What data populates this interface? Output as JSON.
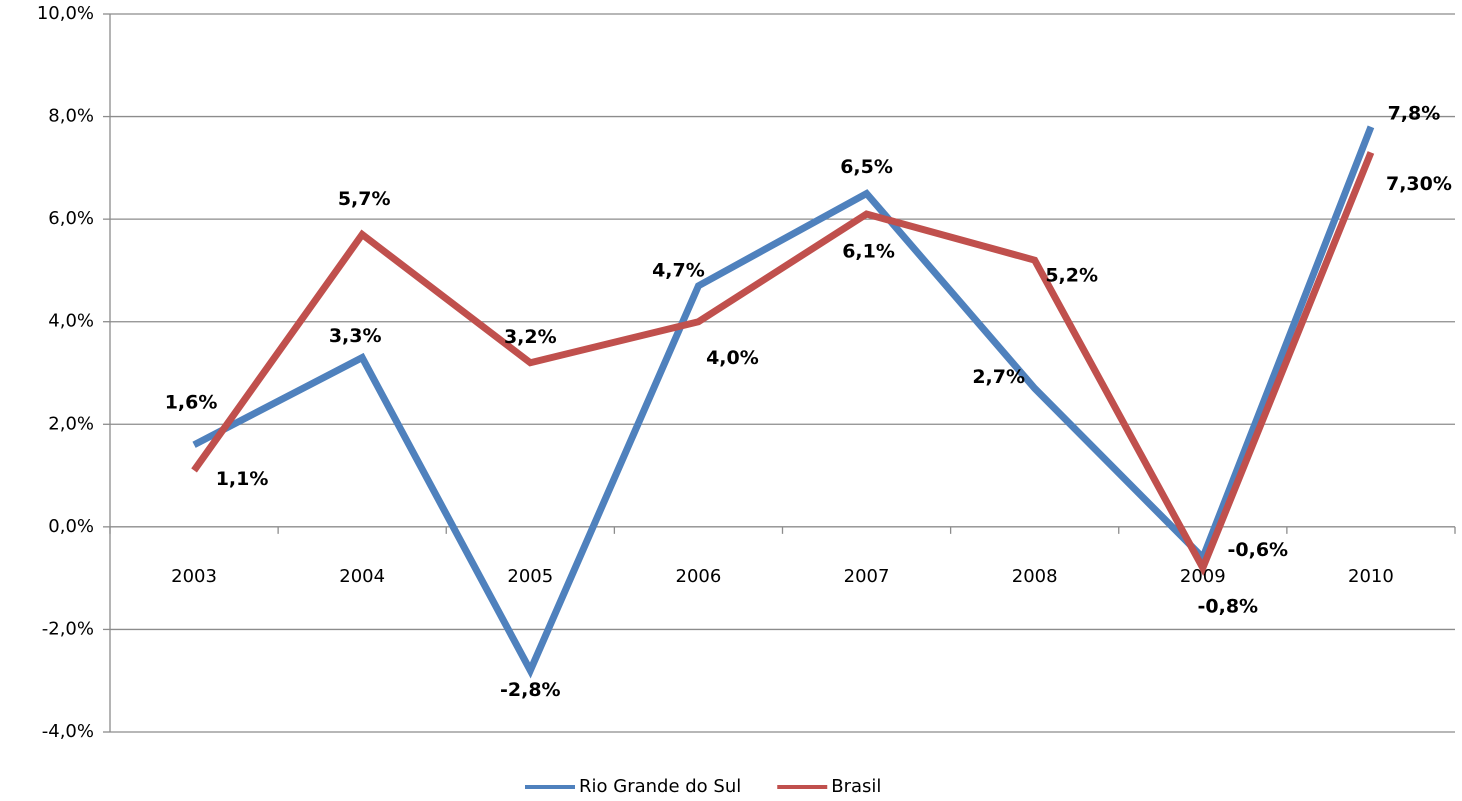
{
  "chart_data": {
    "type": "line",
    "categories": [
      "2003",
      "2004",
      "2005",
      "2006",
      "2007",
      "2008",
      "2009",
      "2010"
    ],
    "series": [
      {
        "name": "Rio Grande do Sul",
        "color": "#4f81bd",
        "values": [
          1.6,
          3.3,
          -2.8,
          4.7,
          6.5,
          2.7,
          -0.6,
          7.8
        ],
        "value_labels": [
          "1,6%",
          "3,3%",
          "-2,8%",
          "4,7%",
          "6,5%",
          "2,7%",
          "-0,6%",
          "7,8%"
        ]
      },
      {
        "name": "Brasil",
        "color": "#c0504d",
        "values": [
          1.1,
          5.7,
          3.2,
          4.0,
          6.1,
          5.2,
          -0.8,
          7.3
        ],
        "value_labels": [
          "1,1%",
          "5,7%",
          "3,2%",
          "4,0%",
          "6,1%",
          "5,2%",
          "-0,8%",
          "7,30%"
        ]
      }
    ],
    "ylim": [
      -4,
      10
    ],
    "yticks": [
      {
        "value": -4,
        "label": "-4,0%"
      },
      {
        "value": -2,
        "label": "-2,0%"
      },
      {
        "value": 0,
        "label": "0,0%"
      },
      {
        "value": 2,
        "label": "2,0%"
      },
      {
        "value": 4,
        "label": "4,0%"
      },
      {
        "value": 6,
        "label": "6,0%"
      },
      {
        "value": 8,
        "label": "8,0%"
      },
      {
        "value": 10,
        "label": "10,0%"
      }
    ],
    "grid": true
  }
}
